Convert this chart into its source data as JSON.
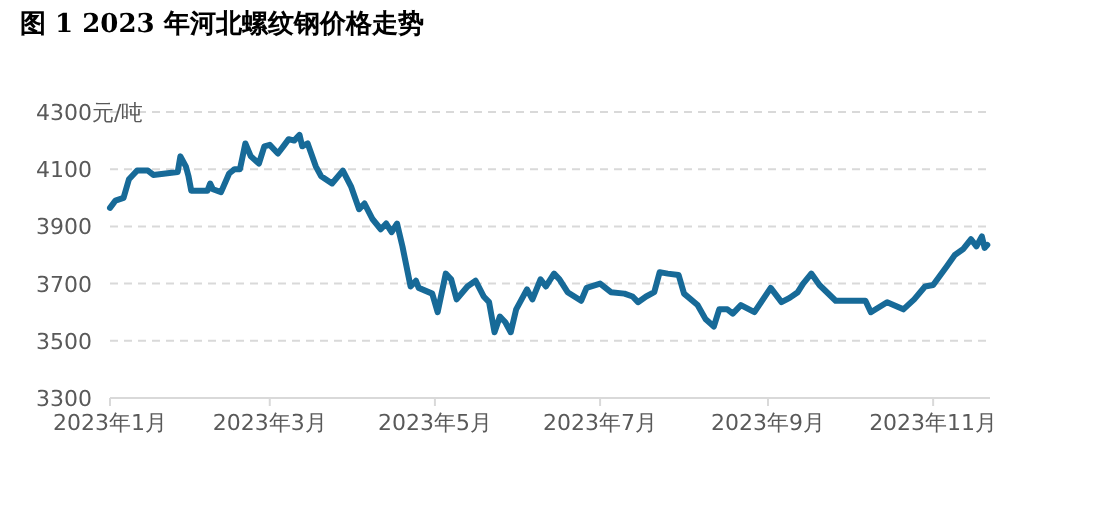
{
  "chart_data": {
    "type": "line",
    "title": "图 1 2023 年河北螺纹钢价格走势",
    "x": [
      "2023-01-01",
      "2023-01-03",
      "2023-01-06",
      "2023-01-08",
      "2023-01-10",
      "2023-01-11",
      "2023-01-15",
      "2023-01-17",
      "2023-01-26",
      "2023-01-27",
      "2023-01-29",
      "2023-01-30",
      "2023-01-31",
      "2023-02-06",
      "2023-02-07",
      "2023-02-08",
      "2023-02-11",
      "2023-02-14",
      "2023-02-16",
      "2023-02-18",
      "2023-02-20",
      "2023-02-22",
      "2023-02-25",
      "2023-02-27",
      "2023-03-01",
      "2023-03-04",
      "2023-03-06",
      "2023-03-08",
      "2023-03-10",
      "2023-03-12",
      "2023-03-13",
      "2023-03-15",
      "2023-03-18",
      "2023-03-20",
      "2023-03-24",
      "2023-03-28",
      "2023-03-31",
      "2023-04-03",
      "2023-04-05",
      "2023-04-08",
      "2023-04-11",
      "2023-04-13",
      "2023-04-15",
      "2023-04-17",
      "2023-04-19",
      "2023-04-22",
      "2023-04-24",
      "2023-04-25",
      "2023-04-30",
      "2023-05-02",
      "2023-05-05",
      "2023-05-07",
      "2023-05-09",
      "2023-05-13",
      "2023-05-16",
      "2023-05-19",
      "2023-05-21",
      "2023-05-23",
      "2023-05-25",
      "2023-05-27",
      "2023-05-29",
      "2023-05-31",
      "2023-06-04",
      "2023-06-06",
      "2023-06-09",
      "2023-06-11",
      "2023-06-14",
      "2023-06-16",
      "2023-06-19",
      "2023-06-24",
      "2023-06-26",
      "2023-07-01",
      "2023-07-05",
      "2023-07-10",
      "2023-07-13",
      "2023-07-15",
      "2023-07-18",
      "2023-07-21",
      "2023-07-23",
      "2023-07-26",
      "2023-07-30",
      "2023-08-01",
      "2023-08-06",
      "2023-08-09",
      "2023-08-12",
      "2023-08-14",
      "2023-08-17",
      "2023-08-19",
      "2023-08-22",
      "2023-08-27",
      "2023-09-02",
      "2023-09-06",
      "2023-09-09",
      "2023-09-12",
      "2023-09-14",
      "2023-09-17",
      "2023-09-20",
      "2023-09-26",
      "2023-10-07",
      "2023-10-09",
      "2023-10-15",
      "2023-10-21",
      "2023-10-25",
      "2023-10-29",
      "2023-11-01",
      "2023-11-06",
      "2023-11-09",
      "2023-11-12",
      "2023-11-15",
      "2023-11-17",
      "2023-11-19",
      "2023-11-20",
      "2023-11-21"
    ],
    "series": [
      {
        "color": "#176a98",
        "values": [
          3965,
          3990,
          4000,
          4065,
          4085,
          4095,
          4095,
          4080,
          4090,
          4145,
          4110,
          4075,
          4025,
          4025,
          4050,
          4030,
          4020,
          4085,
          4100,
          4100,
          4190,
          4145,
          4120,
          4180,
          4185,
          4155,
          4180,
          4205,
          4200,
          4220,
          4180,
          4190,
          4110,
          4075,
          4050,
          4095,
          4040,
          3960,
          3980,
          3925,
          3890,
          3910,
          3880,
          3910,
          3830,
          3690,
          3710,
          3685,
          3665,
          3600,
          3735,
          3715,
          3645,
          3690,
          3710,
          3655,
          3635,
          3530,
          3585,
          3565,
          3530,
          3610,
          3680,
          3645,
          3715,
          3690,
          3735,
          3715,
          3670,
          3640,
          3685,
          3700,
          3670,
          3665,
          3655,
          3635,
          3655,
          3670,
          3740,
          3735,
          3730,
          3665,
          3625,
          3575,
          3550,
          3610,
          3610,
          3595,
          3625,
          3600,
          3685,
          3635,
          3650,
          3670,
          3700,
          3735,
          3695,
          3640,
          3640,
          3600,
          3635,
          3610,
          3645,
          3690,
          3695,
          3760,
          3800,
          3820,
          3855,
          3830,
          3865,
          3825,
          3835
        ]
      }
    ],
    "xlim": [
      "2023-01-01",
      "2023-11-22"
    ],
    "xticks": [
      {
        "value": "2023-01-01",
        "label": "2023年1月"
      },
      {
        "value": "2023-03-01",
        "label": "2023年3月"
      },
      {
        "value": "2023-05-01",
        "label": "2023年5月"
      },
      {
        "value": "2023-07-01",
        "label": "2023年7月"
      },
      {
        "value": "2023-09-01",
        "label": "2023年9月"
      },
      {
        "value": "2023-11-01",
        "label": "2023年11月"
      }
    ],
    "ylim": [
      3300,
      4300
    ],
    "yticks": [
      3300,
      3500,
      3700,
      3900,
      4100,
      {
        "value": 4300,
        "label": "4300元/吨"
      }
    ],
    "grid": "y",
    "marker": "none",
    "line_style": "solid"
  }
}
